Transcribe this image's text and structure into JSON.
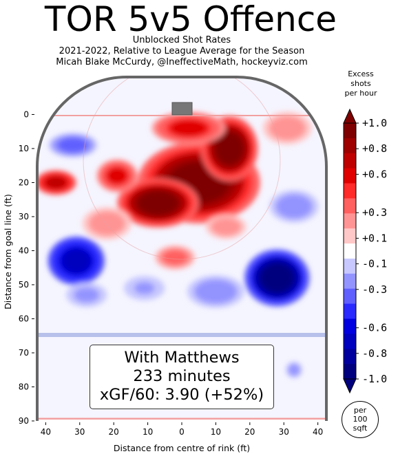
{
  "title": "TOR 5v5 Offence",
  "subtitle": [
    "Unblocked Shot Rates",
    "2021-2022, Relative to League Average for the Season",
    "Micah Blake McCurdy, @IneffectiveMath, hockeyviz.com"
  ],
  "annotation": {
    "line1": "With Matthews",
    "line2": "233 minutes",
    "line3": "xGF/60: 3.90 (+52%)"
  },
  "units_badge": "per\n100\nsqft",
  "colorbar": {
    "title": "Excess\nshots\nper hour",
    "ticks": [
      "+1.0",
      "+0.8",
      "+0.6",
      "+0.3",
      "+0.1",
      "-0.1",
      "-0.3",
      "-0.6",
      "-0.8",
      "-1.0"
    ],
    "colors": [
      "#7f0000",
      "#9e0000",
      "#bf0000",
      "#e00000",
      "#ff2a2a",
      "#ff6060",
      "#ff9494",
      "#ffc8c8",
      "#ffffff",
      "#c8c8ff",
      "#9494ff",
      "#6060ff",
      "#2a2aff",
      "#0000e0",
      "#0000bf",
      "#00009e",
      "#00007f"
    ]
  },
  "chart_data": {
    "type": "heatmap",
    "title": "TOR 5v5 Offence",
    "xlabel": "Distance from centre of rink (ft)",
    "ylabel": "Distance from goal line (ft)",
    "xlim": [
      -42.5,
      42.5
    ],
    "ylim": [
      90,
      -11
    ],
    "x_ticks": [
      "40",
      "30",
      "20",
      "10",
      "0",
      "10",
      "20",
      "30",
      "40"
    ],
    "y_ticks": [
      "0",
      "10",
      "20",
      "30",
      "40",
      "50",
      "60",
      "70",
      "80",
      "90"
    ],
    "value_range": [
      -1.0,
      1.0
    ],
    "hotspots": [
      {
        "x": 5,
        "y": 20,
        "value": 1.0,
        "rx": 15,
        "ry": 10
      },
      {
        "x": -7,
        "y": 26,
        "value": 1.0,
        "rx": 10,
        "ry": 6
      },
      {
        "x": 14,
        "y": 10,
        "value": 1.0,
        "rx": 7,
        "ry": 8
      },
      {
        "x": -19,
        "y": 18,
        "value": 0.6,
        "rx": 5,
        "ry": 4
      },
      {
        "x": -37,
        "y": 20,
        "value": 0.8,
        "rx": 5,
        "ry": 3
      },
      {
        "x": 2,
        "y": 4,
        "value": 0.6,
        "rx": 9,
        "ry": 4
      },
      {
        "x": -22,
        "y": 32,
        "value": 0.3,
        "rx": 6,
        "ry": 4
      },
      {
        "x": -2,
        "y": 42,
        "value": 0.4,
        "rx": 5,
        "ry": 3
      },
      {
        "x": 13,
        "y": 33,
        "value": 0.3,
        "rx": 5,
        "ry": 3
      },
      {
        "x": 31,
        "y": 4,
        "value": 0.3,
        "rx": 6,
        "ry": 4
      },
      {
        "x": 28,
        "y": 48,
        "value": -1.0,
        "rx": 8,
        "ry": 7
      },
      {
        "x": -31,
        "y": 43,
        "value": -0.8,
        "rx": 7,
        "ry": 6
      },
      {
        "x": -32,
        "y": 9,
        "value": -0.4,
        "rx": 6,
        "ry": 3
      },
      {
        "x": 10,
        "y": 52,
        "value": -0.3,
        "rx": 7,
        "ry": 4
      },
      {
        "x": -28,
        "y": 53,
        "value": -0.25,
        "rx": 5,
        "ry": 3
      },
      {
        "x": 33,
        "y": 27,
        "value": -0.3,
        "rx": 6,
        "ry": 4
      },
      {
        "x": -11,
        "y": 51,
        "value": -0.2,
        "rx": 5,
        "ry": 3
      },
      {
        "x": 33,
        "y": 75,
        "value": -0.3,
        "rx": 2,
        "ry": 2
      }
    ]
  }
}
